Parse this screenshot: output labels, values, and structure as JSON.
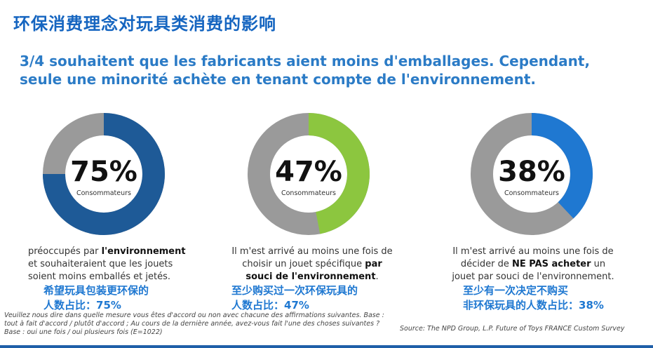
{
  "cn_title": "环保消费理念对玩具类消费的影响",
  "headline": "3/4 souhaitent que les fabricants aient moins d'emballages. Cependant, seule une minorité achète en tenant compte de l'environnement.",
  "chart_data": [
    {
      "type": "pie",
      "style": "donut",
      "values": [
        75,
        25
      ],
      "colors": [
        "#1e5a97",
        "#9a9a9a"
      ],
      "center_label": "75%",
      "center_sublabel": "Consommateurs",
      "description_pre": "préoccupés par ",
      "description_bold": "l'environnement",
      "description_post": " et souhaiteraient que les jouets soient moins emballés et jetés.",
      "cn_note_line1": "希望玩具包装更环保的",
      "cn_note_line2": "人数占比：75%"
    },
    {
      "type": "pie",
      "style": "donut",
      "values": [
        47,
        53
      ],
      "colors": [
        "#8cc63f",
        "#9a9a9a"
      ],
      "center_label": "47%",
      "center_sublabel": "Consommateurs",
      "description_pre": "Il m'est arrivé au moins une fois de choisir un jouet spécifique ",
      "description_bold": "par souci de l'environnement",
      "description_post": ".",
      "cn_note_line1": "至少购买过一次环保玩具的",
      "cn_note_line2": "人数占比：47%"
    },
    {
      "type": "pie",
      "style": "donut",
      "values": [
        38,
        62
      ],
      "colors": [
        "#1f78d1",
        "#9a9a9a"
      ],
      "center_label": "38%",
      "center_sublabel": "Consommateurs",
      "description_pre": "Il m'est arrivé au moins une fois de décider de ",
      "description_bold": "NE PAS acheter",
      "description_post": " un jouet par souci de l'environnement.",
      "cn_note_line1": "至少有一次决定不购买",
      "cn_note_line2": "非环保玩具的人数占比：38%"
    }
  ],
  "footnote": "Veuillez nous dire dans quelle mesure vous êtes d'accord ou non avec chacune des affirmations suivantes. Base : tout à fait d'accord / plutôt d'accord ; Au cours de la dernière année, avez-vous fait l'une des choses suivantes ? Base : oui une fois / oui plusieurs fois (E=1022)",
  "source": "Source: The NPD Group, L.P. Future of Toys FRANCE Custom Survey"
}
